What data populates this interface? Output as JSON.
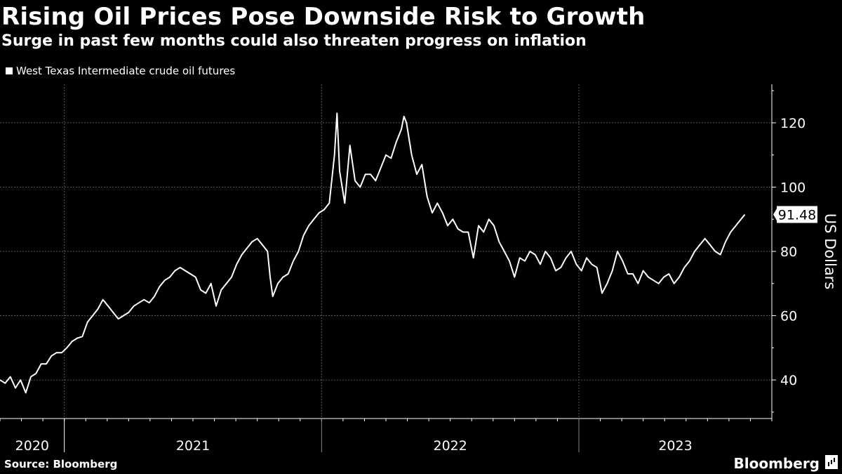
{
  "header": {
    "title": "Rising Oil Prices Pose Downside Risk to Growth",
    "subtitle": "Surge in past few months could also threaten progress on inflation"
  },
  "footer": {
    "source": "Source: Bloomberg",
    "brand": "Bloomberg"
  },
  "colors": {
    "background": "#000000",
    "line": "#ffffff",
    "grid": "#555555"
  },
  "chart_data": {
    "type": "line",
    "title": "Rising Oil Prices Pose Downside Risk to Growth",
    "legend": [
      "West Texas Intermediate crude oil futures"
    ],
    "xlabel": "",
    "ylabel": "US Dollars",
    "ylim": [
      28,
      132
    ],
    "xlim": [
      2020.75,
      2023.75
    ],
    "yticks": [
      40,
      60,
      80,
      100,
      120
    ],
    "xticks": [
      {
        "label": "2020",
        "start": 2020.75,
        "end": 2021.0
      },
      {
        "label": "2021",
        "start": 2021.0,
        "end": 2022.0
      },
      {
        "label": "2022",
        "start": 2022.0,
        "end": 2023.0
      },
      {
        "label": "2023",
        "start": 2023.0,
        "end": 2023.75
      }
    ],
    "last_value_label": "91.48",
    "series": [
      {
        "name": "West Texas Intermediate crude oil futures",
        "points": [
          [
            2020.75,
            40
          ],
          [
            2020.77,
            39
          ],
          [
            2020.79,
            41
          ],
          [
            2020.81,
            37.5
          ],
          [
            2020.83,
            40
          ],
          [
            2020.85,
            36
          ],
          [
            2020.87,
            41
          ],
          [
            2020.89,
            42
          ],
          [
            2020.91,
            45
          ],
          [
            2020.93,
            45
          ],
          [
            2020.95,
            47.5
          ],
          [
            2020.97,
            48.5
          ],
          [
            2020.99,
            48.5
          ],
          [
            2021.01,
            50
          ],
          [
            2021.03,
            52
          ],
          [
            2021.05,
            53
          ],
          [
            2021.07,
            53.5
          ],
          [
            2021.09,
            58
          ],
          [
            2021.11,
            60
          ],
          [
            2021.13,
            62
          ],
          [
            2021.15,
            65
          ],
          [
            2021.17,
            63
          ],
          [
            2021.19,
            61
          ],
          [
            2021.21,
            59
          ],
          [
            2021.23,
            60
          ],
          [
            2021.25,
            61
          ],
          [
            2021.27,
            63
          ],
          [
            2021.29,
            64
          ],
          [
            2021.31,
            65
          ],
          [
            2021.33,
            64
          ],
          [
            2021.35,
            66
          ],
          [
            2021.37,
            69
          ],
          [
            2021.39,
            71
          ],
          [
            2021.41,
            72
          ],
          [
            2021.43,
            74
          ],
          [
            2021.45,
            75
          ],
          [
            2021.47,
            74
          ],
          [
            2021.49,
            73
          ],
          [
            2021.51,
            72
          ],
          [
            2021.53,
            68
          ],
          [
            2021.55,
            67
          ],
          [
            2021.57,
            70
          ],
          [
            2021.59,
            63
          ],
          [
            2021.61,
            68
          ],
          [
            2021.63,
            70
          ],
          [
            2021.65,
            72
          ],
          [
            2021.67,
            76
          ],
          [
            2021.69,
            79
          ],
          [
            2021.71,
            81
          ],
          [
            2021.73,
            83
          ],
          [
            2021.75,
            84
          ],
          [
            2021.77,
            82
          ],
          [
            2021.79,
            80
          ],
          [
            2021.8,
            72
          ],
          [
            2021.81,
            66
          ],
          [
            2021.83,
            70
          ],
          [
            2021.85,
            72
          ],
          [
            2021.87,
            73
          ],
          [
            2021.89,
            77
          ],
          [
            2021.91,
            80
          ],
          [
            2021.93,
            85
          ],
          [
            2021.95,
            88
          ],
          [
            2021.97,
            90
          ],
          [
            2021.99,
            92
          ],
          [
            2022.01,
            93
          ],
          [
            2022.03,
            95
          ],
          [
            2022.05,
            110
          ],
          [
            2022.06,
            123
          ],
          [
            2022.07,
            105
          ],
          [
            2022.09,
            95
          ],
          [
            2022.11,
            113
          ],
          [
            2022.13,
            102
          ],
          [
            2022.15,
            100
          ],
          [
            2022.17,
            104
          ],
          [
            2022.19,
            104
          ],
          [
            2022.21,
            102
          ],
          [
            2022.23,
            106
          ],
          [
            2022.25,
            110
          ],
          [
            2022.27,
            109
          ],
          [
            2022.29,
            114
          ],
          [
            2022.31,
            118
          ],
          [
            2022.32,
            122
          ],
          [
            2022.33,
            120
          ],
          [
            2022.35,
            110
          ],
          [
            2022.37,
            104
          ],
          [
            2022.39,
            107
          ],
          [
            2022.41,
            97
          ],
          [
            2022.43,
            92
          ],
          [
            2022.45,
            95
          ],
          [
            2022.47,
            92
          ],
          [
            2022.49,
            88
          ],
          [
            2022.51,
            90
          ],
          [
            2022.53,
            87
          ],
          [
            2022.55,
            86
          ],
          [
            2022.57,
            86
          ],
          [
            2022.59,
            78
          ],
          [
            2022.61,
            88
          ],
          [
            2022.63,
            86
          ],
          [
            2022.65,
            90
          ],
          [
            2022.67,
            88
          ],
          [
            2022.69,
            83
          ],
          [
            2022.71,
            80
          ],
          [
            2022.73,
            77
          ],
          [
            2022.75,
            72
          ],
          [
            2022.77,
            78
          ],
          [
            2022.79,
            77
          ],
          [
            2022.81,
            80
          ],
          [
            2022.83,
            79
          ],
          [
            2022.85,
            76
          ],
          [
            2022.87,
            80
          ],
          [
            2022.89,
            78
          ],
          [
            2022.91,
            74
          ],
          [
            2022.93,
            75
          ],
          [
            2022.95,
            78
          ],
          [
            2022.97,
            80
          ],
          [
            2022.99,
            76
          ],
          [
            2023.01,
            74
          ],
          [
            2023.03,
            78
          ],
          [
            2023.05,
            76
          ],
          [
            2023.07,
            75
          ],
          [
            2023.09,
            67
          ],
          [
            2023.11,
            70
          ],
          [
            2023.13,
            74
          ],
          [
            2023.15,
            80
          ],
          [
            2023.17,
            77
          ],
          [
            2023.19,
            73
          ],
          [
            2023.21,
            73
          ],
          [
            2023.23,
            70
          ],
          [
            2023.25,
            74
          ],
          [
            2023.27,
            72
          ],
          [
            2023.29,
            71
          ],
          [
            2023.31,
            70
          ],
          [
            2023.33,
            72
          ],
          [
            2023.35,
            73
          ],
          [
            2023.37,
            70
          ],
          [
            2023.39,
            72
          ],
          [
            2023.41,
            75
          ],
          [
            2023.43,
            77
          ],
          [
            2023.45,
            80
          ],
          [
            2023.47,
            82
          ],
          [
            2023.49,
            84
          ],
          [
            2023.51,
            82
          ],
          [
            2023.53,
            80
          ],
          [
            2023.55,
            79
          ],
          [
            2023.57,
            83
          ],
          [
            2023.59,
            86
          ],
          [
            2023.61,
            88
          ],
          [
            2023.63,
            90
          ],
          [
            2023.645,
            91.48
          ]
        ]
      }
    ]
  }
}
